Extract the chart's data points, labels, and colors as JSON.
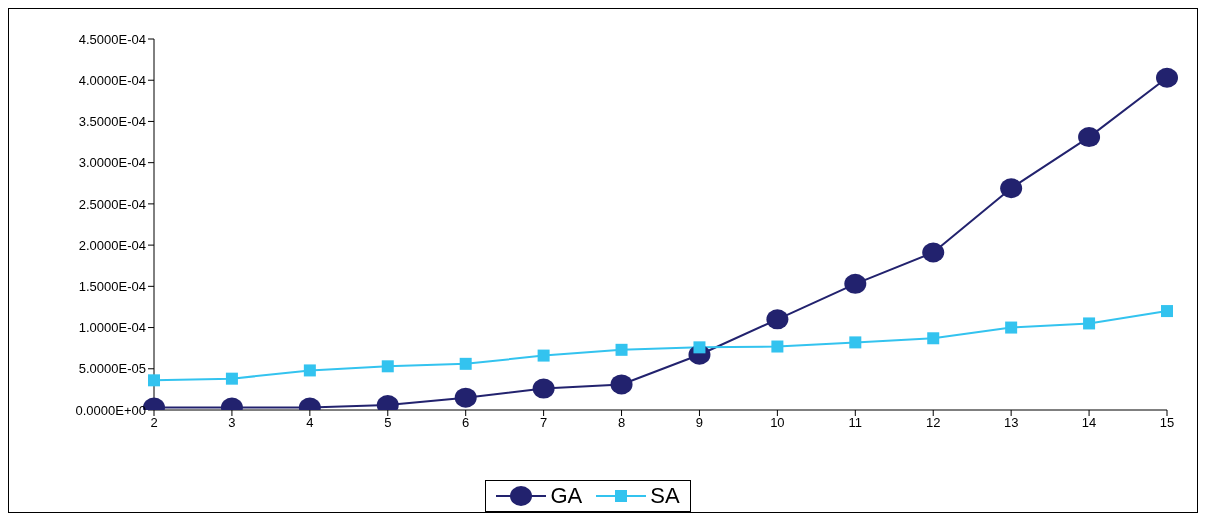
{
  "chart_data": {
    "type": "line",
    "categories": [
      "2",
      "3",
      "4",
      "5",
      "6",
      "7",
      "8",
      "9",
      "10",
      "11",
      "12",
      "13",
      "14",
      "15"
    ],
    "series": [
      {
        "name": "GA",
        "color": "#22226e",
        "marker": "circle",
        "values": [
          3e-06,
          3e-06,
          3e-06,
          6e-06,
          1.5e-05,
          2.6e-05,
          3.1e-05,
          6.7e-05,
          0.00011,
          0.000153,
          0.000191,
          0.000269,
          0.000331,
          0.000403
        ]
      },
      {
        "name": "SA",
        "color": "#33c3ef",
        "marker": "square",
        "values": [
          3.6e-05,
          3.8e-05,
          4.8e-05,
          5.3e-05,
          5.6e-05,
          6.6e-05,
          7.3e-05,
          7.6e-05,
          7.7e-05,
          8.2e-05,
          8.7e-05,
          0.0001,
          0.000105,
          0.00012
        ]
      }
    ],
    "ylim": [
      0,
      0.00045
    ],
    "yticks": [
      {
        "value": 0,
        "label": "0.0000E+00"
      },
      {
        "value": 5e-05,
        "label": "5.0000E-05"
      },
      {
        "value": 0.0001,
        "label": "1.0000E-04"
      },
      {
        "value": 0.00015,
        "label": "1.5000E-04"
      },
      {
        "value": 0.0002,
        "label": "2.0000E-04"
      },
      {
        "value": 0.00025,
        "label": "2.5000E-04"
      },
      {
        "value": 0.0003,
        "label": "3.0000E-04"
      },
      {
        "value": 0.00035,
        "label": "3.5000E-04"
      },
      {
        "value": 0.0004,
        "label": "4.0000E-04"
      },
      {
        "value": 0.00045,
        "label": "4.5000E-04"
      }
    ],
    "grid": false,
    "legend": "bottom",
    "line_style": "solid"
  }
}
